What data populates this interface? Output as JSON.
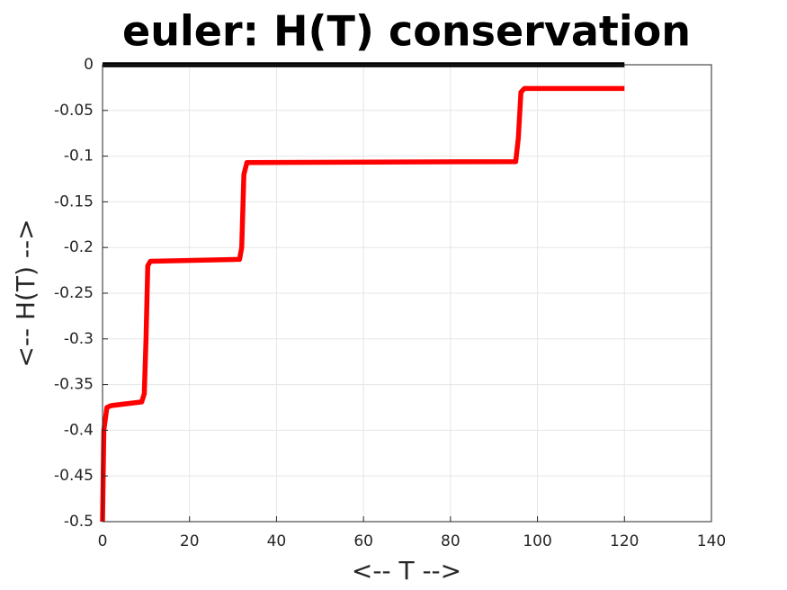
{
  "chart_data": {
    "type": "line",
    "title": "euler: H(T) conservation",
    "xlabel": "<-- T -->",
    "ylabel": "<-- H(T) -->",
    "series": [
      {
        "color": "#000000",
        "x": [
          0,
          120
        ],
        "values": [
          0,
          0
        ]
      },
      {
        "color": "#ff0000",
        "x": [
          0,
          0.3,
          1,
          2,
          9,
          9.6,
          10,
          10.4,
          11,
          31.5,
          32,
          32.5,
          33.2,
          95,
          95.6,
          96.2,
          97,
          120
        ],
        "values": [
          -0.5,
          -0.4,
          -0.375,
          -0.373,
          -0.369,
          -0.36,
          -0.3,
          -0.22,
          -0.215,
          -0.213,
          -0.2,
          -0.12,
          -0.107,
          -0.106,
          -0.08,
          -0.03,
          -0.026,
          -0.026
        ]
      }
    ],
    "xlim": [
      0,
      140
    ],
    "xticks": [
      0,
      20,
      40,
      60,
      80,
      100,
      120,
      140
    ],
    "ylim": [
      -0.5,
      0
    ],
    "yticks": [
      -0.5,
      -0.45,
      -0.4,
      -0.35,
      -0.3,
      -0.25,
      -0.2,
      -0.15,
      -0.1,
      -0.05,
      0
    ],
    "grid": true
  }
}
